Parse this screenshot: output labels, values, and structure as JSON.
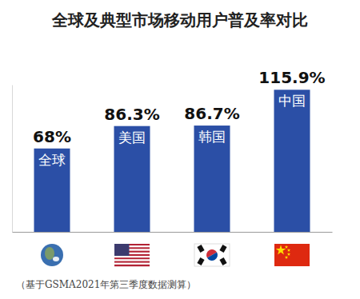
{
  "chart_data": {
    "type": "bar",
    "title": "全球及典型市场移动用户普及率对比",
    "categories": [
      "全球",
      "美国",
      "韩国",
      "中国"
    ],
    "values": [
      68,
      86.3,
      86.7,
      115.9
    ],
    "value_labels": [
      "68%",
      "86.3%",
      "86.7%",
      "115.9%"
    ],
    "color": "#2b4fa6",
    "ylim": [
      0,
      120
    ],
    "tick_labels": false,
    "data_labels": true,
    "annotations": [
      "（基于GSMA2021年第三季度数据测算）"
    ]
  }
}
